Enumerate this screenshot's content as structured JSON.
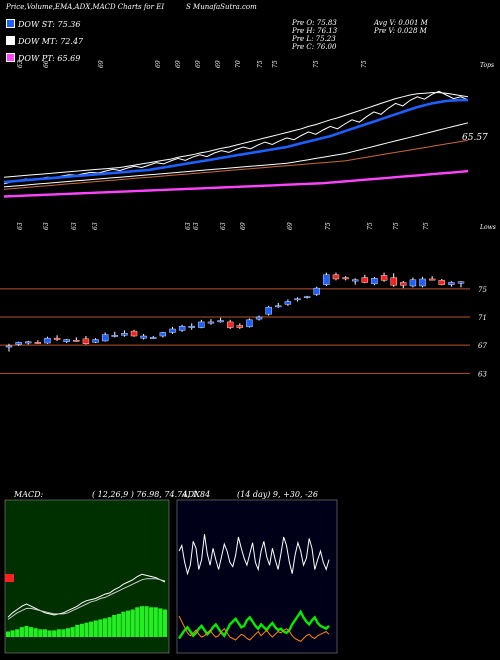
{
  "header": {
    "title": "Price,Volume,EMA,ADX,MACD Charts for EI",
    "site": "S MunafaSutra.com"
  },
  "legend": [
    {
      "label": "DOW ST: 75.36",
      "color": "#1e5fff"
    },
    {
      "label": "DOW MT: 72.47",
      "color": "#ffffff"
    },
    {
      "label": "DOW PT: 65.69",
      "color": "#ff44ff"
    }
  ],
  "ohlc": {
    "open": "Pre  O: 75.83",
    "high": "Pre  H: 76.13",
    "low": "Pre  L: 75.23",
    "close": "Pre  C: 76.00",
    "avg_volume": "Avg V: 0.001 M",
    "volume": "Pre  V: 0.028 M"
  },
  "colors": {
    "bull": "#1e5fff",
    "bear": "#ff2020",
    "macd_hist": "#22ee22",
    "adx_green": "#00ee00",
    "adx_orange": "#ff8800"
  },
  "chart_data": [
    {
      "type": "line",
      "panel": "ema",
      "top_labels": [
        "63",
        "66",
        "69",
        "69",
        "69",
        "69",
        "69",
        "70",
        "75",
        "75",
        "75",
        "75"
      ],
      "right_labels": [
        "Tops",
        "65.57"
      ],
      "series": [
        {
          "name": "",
          "color": "#ffffff",
          "values": [
            61.5,
            61.8,
            62.0,
            62.3,
            62.1,
            62.4,
            62.6,
            62.5,
            62.8,
            63.0,
            62.9,
            63.2,
            63.4,
            63.3,
            63.6,
            63.9,
            63.7,
            64.1,
            64.4,
            64.2,
            64.6,
            65.0,
            64.8,
            65.3,
            65.7,
            65.4,
            65.9,
            66.3,
            66.0,
            66.6,
            67.0,
            66.7,
            67.2,
            67.6,
            67.3,
            67.9,
            68.4,
            68.0,
            68.6,
            69.1,
            68.8,
            69.5,
            70.1,
            69.7,
            70.4,
            71.0,
            70.6,
            71.4,
            72.1,
            71.7,
            72.6,
            73.4,
            73.0,
            74.0,
            74.8,
            74.4,
            75.3,
            75.9,
            75.5,
            76.3,
            76.8,
            76.2,
            75.6,
            75.9,
            75.4
          ]
        },
        {
          "name": "",
          "color": "#ffffff",
          "values": [
            62.6,
            62.7,
            62.8,
            62.9,
            63.0,
            63.1,
            63.2,
            63.3,
            63.4,
            63.5,
            63.6,
            63.7,
            63.8,
            63.9,
            64.0,
            64.1,
            64.2,
            64.4,
            64.6,
            64.8,
            65.0,
            65.2,
            65.4,
            65.6,
            65.9,
            66.1,
            66.3,
            66.6,
            66.8,
            67.1,
            67.4,
            67.6,
            67.9,
            68.2,
            68.5,
            68.8,
            69.1,
            69.4,
            69.7,
            70.0,
            70.3,
            70.6,
            71.0,
            71.3,
            71.7,
            72.1,
            72.4,
            72.8,
            73.2,
            73.6,
            74.0,
            74.4,
            74.8,
            75.2,
            75.6,
            75.9,
            76.2,
            76.4,
            76.5,
            76.6,
            76.6,
            76.5,
            76.3,
            76.1,
            75.9
          ]
        },
        {
          "name": "",
          "color": "#1e5fff",
          "values": [
            61.8,
            61.9,
            62.0,
            62.1,
            62.2,
            62.3,
            62.4,
            62.5,
            62.6,
            62.7,
            62.8,
            62.9,
            63.0,
            63.1,
            63.2,
            63.3,
            63.4,
            63.5,
            63.6,
            63.7,
            63.8,
            64.0,
            64.2,
            64.4,
            64.6,
            64.8,
            65.0,
            65.2,
            65.4,
            65.6,
            65.8,
            66.0,
            66.2,
            66.4,
            66.6,
            66.8,
            67.0,
            67.2,
            67.4,
            67.6,
            67.9,
            68.2,
            68.5,
            68.8,
            69.1,
            69.4,
            69.8,
            70.2,
            70.6,
            71.0,
            71.4,
            71.8,
            72.2,
            72.6,
            73.0,
            73.4,
            73.8,
            74.2,
            74.5,
            74.8,
            75.0,
            75.2,
            75.3,
            75.35,
            75.36
          ]
        },
        {
          "name": "",
          "color": "#ffffff",
          "values": [
            61.0,
            61.1,
            61.2,
            61.3,
            61.4,
            61.5,
            61.6,
            61.7,
            61.8,
            61.9,
            62.0,
            62.1,
            62.2,
            62.3,
            62.4,
            62.5,
            62.6,
            62.7,
            62.8,
            62.9,
            63.0,
            63.1,
            63.2,
            63.3,
            63.4,
            63.5,
            63.6,
            63.7,
            63.8,
            63.9,
            64.0,
            64.1,
            64.2,
            64.3,
            64.4,
            64.5,
            64.6,
            64.7,
            64.8,
            64.9,
            65.1,
            65.3,
            65.5,
            65.7,
            65.9,
            66.1,
            66.3,
            66.5,
            66.8,
            67.1,
            67.4,
            67.7,
            68.0,
            68.3,
            68.6,
            68.9,
            69.2,
            69.5,
            69.8,
            70.1,
            70.4,
            70.7,
            71.0,
            71.3,
            71.6
          ]
        },
        {
          "name": "",
          "color": "#c86a3a",
          "values": [
            60.6,
            60.7,
            60.8,
            60.9,
            61.0,
            61.1,
            61.2,
            61.3,
            61.4,
            61.5,
            61.6,
            61.7,
            61.8,
            61.9,
            62.0,
            62.1,
            62.2,
            62.3,
            62.4,
            62.5,
            62.6,
            62.7,
            62.8,
            62.9,
            63.0,
            63.1,
            63.2,
            63.3,
            63.4,
            63.5,
            63.6,
            63.7,
            63.8,
            63.9,
            64.0,
            64.1,
            64.2,
            64.3,
            64.4,
            64.5,
            64.6,
            64.7,
            64.8,
            64.9,
            65.0,
            65.1,
            65.2,
            65.3,
            65.5,
            65.7,
            65.9,
            66.1,
            66.3,
            66.5,
            66.7,
            66.9,
            67.1,
            67.3,
            67.5,
            67.7,
            67.9,
            68.1,
            68.3,
            68.5,
            68.7
          ]
        },
        {
          "name": "",
          "color": "#ff44ff",
          "values": [
            59.4,
            59.45,
            59.5,
            59.55,
            59.6,
            59.65,
            59.7,
            59.75,
            59.8,
            59.85,
            59.9,
            59.95,
            60.0,
            60.05,
            60.1,
            60.15,
            60.2,
            60.25,
            60.3,
            60.35,
            60.4,
            60.45,
            60.5,
            60.55,
            60.6,
            60.65,
            60.7,
            60.75,
            60.8,
            60.85,
            60.9,
            60.95,
            61.0,
            61.05,
            61.1,
            61.15,
            61.2,
            61.25,
            61.3,
            61.35,
            61.4,
            61.45,
            61.5,
            61.55,
            61.6,
            61.7,
            61.8,
            61.9,
            62.0,
            62.1,
            62.2,
            62.3,
            62.4,
            62.5,
            62.6,
            62.7,
            62.8,
            62.9,
            63.0,
            63.1,
            63.2,
            63.3,
            63.4,
            63.5,
            63.6
          ]
        }
      ],
      "ylim": [
        58.0,
        80.0
      ]
    },
    {
      "type": "candlestick",
      "panel": "price",
      "top_labels": [
        "63",
        "63",
        "63",
        "63",
        "63",
        "63",
        "63",
        "69",
        "69",
        "75",
        "75",
        "75",
        "75"
      ],
      "right_labels": [
        "Lows",
        "75",
        "71",
        "67",
        "63"
      ],
      "gridlines": [
        75,
        71,
        67,
        63
      ],
      "ylim": [
        59.5,
        82.5
      ],
      "candles": [
        {
          "o": 66.8,
          "h": 67.2,
          "l": 66.1,
          "c": 66.9
        },
        {
          "o": 67.1,
          "h": 67.5,
          "l": 66.9,
          "c": 67.4
        },
        {
          "o": 67.3,
          "h": 67.6,
          "l": 67.1,
          "c": 67.5
        },
        {
          "o": 67.4,
          "h": 67.7,
          "l": 67.2,
          "c": 67.3
        },
        {
          "o": 67.3,
          "h": 68.2,
          "l": 67.2,
          "c": 68.0
        },
        {
          "o": 68.0,
          "h": 68.4,
          "l": 67.6,
          "c": 67.8
        },
        {
          "o": 67.5,
          "h": 67.9,
          "l": 67.3,
          "c": 67.8
        },
        {
          "o": 67.7,
          "h": 68.1,
          "l": 67.5,
          "c": 67.6
        },
        {
          "o": 67.9,
          "h": 68.3,
          "l": 67.1,
          "c": 67.2
        },
        {
          "o": 67.4,
          "h": 68.0,
          "l": 67.3,
          "c": 67.8
        },
        {
          "o": 67.6,
          "h": 68.8,
          "l": 67.5,
          "c": 68.5
        },
        {
          "o": 68.3,
          "h": 68.9,
          "l": 68.1,
          "c": 68.4
        },
        {
          "o": 68.4,
          "h": 69.1,
          "l": 68.2,
          "c": 68.7
        },
        {
          "o": 69.0,
          "h": 69.2,
          "l": 68.2,
          "c": 68.3
        },
        {
          "o": 68.0,
          "h": 68.6,
          "l": 67.8,
          "c": 68.3
        },
        {
          "o": 68.1,
          "h": 68.3,
          "l": 67.9,
          "c": 68.1
        },
        {
          "o": 68.3,
          "h": 68.9,
          "l": 68.1,
          "c": 68.8
        },
        {
          "o": 68.8,
          "h": 69.6,
          "l": 68.6,
          "c": 69.3
        },
        {
          "o": 69.1,
          "h": 69.9,
          "l": 68.9,
          "c": 69.7
        },
        {
          "o": 69.5,
          "h": 70.1,
          "l": 69.2,
          "c": 69.7
        },
        {
          "o": 69.5,
          "h": 70.6,
          "l": 69.4,
          "c": 70.3
        },
        {
          "o": 70.2,
          "h": 70.7,
          "l": 69.9,
          "c": 70.3
        },
        {
          "o": 70.3,
          "h": 70.9,
          "l": 70.2,
          "c": 70.5
        },
        {
          "o": 70.3,
          "h": 70.6,
          "l": 69.3,
          "c": 69.5
        },
        {
          "o": 69.8,
          "h": 70.1,
          "l": 69.3,
          "c": 69.5
        },
        {
          "o": 69.6,
          "h": 70.8,
          "l": 69.5,
          "c": 70.6
        },
        {
          "o": 70.7,
          "h": 71.2,
          "l": 70.5,
          "c": 71.0
        },
        {
          "o": 71.4,
          "h": 72.6,
          "l": 71.2,
          "c": 72.4
        },
        {
          "o": 72.5,
          "h": 73.0,
          "l": 72.3,
          "c": 72.6
        },
        {
          "o": 72.8,
          "h": 73.5,
          "l": 72.6,
          "c": 73.2
        },
        {
          "o": 73.5,
          "h": 73.8,
          "l": 73.2,
          "c": 73.6
        },
        {
          "o": 73.8,
          "h": 74.0,
          "l": 73.6,
          "c": 73.9
        },
        {
          "o": 74.2,
          "h": 75.3,
          "l": 74.0,
          "c": 75.1
        },
        {
          "o": 75.6,
          "h": 77.3,
          "l": 75.4,
          "c": 77.0
        },
        {
          "o": 77.0,
          "h": 77.3,
          "l": 76.2,
          "c": 76.4
        },
        {
          "o": 76.6,
          "h": 76.8,
          "l": 76.2,
          "c": 76.4
        },
        {
          "o": 76.1,
          "h": 76.5,
          "l": 75.6,
          "c": 76.3
        },
        {
          "o": 76.6,
          "h": 77.0,
          "l": 75.8,
          "c": 75.9
        },
        {
          "o": 75.7,
          "h": 76.7,
          "l": 75.5,
          "c": 76.5
        },
        {
          "o": 76.9,
          "h": 77.3,
          "l": 76.0,
          "c": 76.2
        },
        {
          "o": 76.6,
          "h": 77.2,
          "l": 75.3,
          "c": 75.5
        },
        {
          "o": 75.9,
          "h": 76.1,
          "l": 75.1,
          "c": 75.5
        },
        {
          "o": 75.4,
          "h": 76.6,
          "l": 75.2,
          "c": 76.3
        },
        {
          "o": 75.4,
          "h": 76.7,
          "l": 75.2,
          "c": 76.4
        },
        {
          "o": 76.4,
          "h": 76.8,
          "l": 76.2,
          "c": 76.3
        },
        {
          "o": 76.2,
          "h": 76.4,
          "l": 75.5,
          "c": 75.6
        },
        {
          "o": 75.6,
          "h": 76.1,
          "l": 75.3,
          "c": 75.9
        },
        {
          "o": 75.8,
          "h": 76.1,
          "l": 75.2,
          "c": 76.0
        }
      ]
    },
    {
      "type": "line",
      "panel": "macd",
      "title": "MACD:",
      "params": "( 12,26,9 ) 76.98, 74.74, 1.84",
      "ylim": [
        0,
        1
      ],
      "series": [
        {
          "name": "",
          "color": "#ffffff",
          "values": [
            0.18,
            0.22,
            0.25,
            0.28,
            0.3,
            0.28,
            0.26,
            0.24,
            0.22,
            0.21,
            0.2,
            0.21,
            0.22,
            0.24,
            0.26,
            0.28,
            0.31,
            0.33,
            0.34,
            0.35,
            0.37,
            0.39,
            0.4,
            0.43,
            0.45,
            0.48,
            0.5,
            0.52,
            0.55,
            0.57,
            0.56,
            0.55,
            0.54,
            0.52,
            0.5
          ]
        },
        {
          "name": "",
          "color": "#cccccc",
          "values": [
            0.16,
            0.19,
            0.22,
            0.24,
            0.26,
            0.26,
            0.25,
            0.24,
            0.23,
            0.22,
            0.21,
            0.21,
            0.21,
            0.22,
            0.24,
            0.26,
            0.28,
            0.3,
            0.32,
            0.33,
            0.35,
            0.36,
            0.38,
            0.4,
            0.42,
            0.44,
            0.46,
            0.48,
            0.5,
            0.52,
            0.53,
            0.53,
            0.53,
            0.52,
            0.51
          ]
        },
        {
          "name": "",
          "color": "#22ee22",
          "values": [
            0.05,
            0.06,
            0.07,
            0.09,
            0.1,
            0.09,
            0.08,
            0.07,
            0.07,
            0.06,
            0.06,
            0.07,
            0.07,
            0.08,
            0.09,
            0.11,
            0.12,
            0.13,
            0.14,
            0.15,
            0.16,
            0.17,
            0.18,
            0.2,
            0.21,
            0.23,
            0.24,
            0.25,
            0.27,
            0.28,
            0.28,
            0.27,
            0.27,
            0.26,
            0.25
          ]
        }
      ]
    },
    {
      "type": "line",
      "panel": "adx",
      "title": "ADX",
      "params": "(14 day) 9, +30, -26",
      "ylim": [
        0,
        100
      ],
      "series": [
        {
          "name": "",
          "color": "#ffffff",
          "values": [
            68,
            72,
            60,
            52,
            58,
            75,
            70,
            55,
            62,
            80,
            66,
            58,
            70,
            62,
            55,
            64,
            73,
            68,
            60,
            57,
            65,
            78,
            70,
            63,
            58,
            66,
            74,
            60,
            55,
            68,
            75,
            64,
            58,
            70,
            62,
            55,
            66,
            78,
            72,
            60,
            52,
            65,
            74,
            68,
            58,
            63,
            77,
            70,
            55,
            62,
            68,
            60,
            55,
            62
          ]
        },
        {
          "name": "",
          "color": "#00ee00",
          "values": [
            6,
            9,
            12,
            14,
            11,
            8,
            10,
            13,
            15,
            12,
            9,
            11,
            14,
            16,
            13,
            10,
            8,
            12,
            16,
            18,
            20,
            17,
            14,
            15,
            19,
            21,
            18,
            15,
            13,
            16,
            14,
            12,
            15,
            17,
            14,
            12,
            13,
            11,
            10,
            12,
            16,
            19,
            22,
            25,
            21,
            18,
            16,
            19,
            21,
            17,
            15,
            14,
            13,
            15
          ]
        },
        {
          "name": "",
          "color": "#ff8800",
          "values": [
            22,
            18,
            14,
            10,
            8,
            10,
            12,
            9,
            7,
            8,
            10,
            12,
            9,
            7,
            8,
            11,
            13,
            10,
            7,
            6,
            5,
            7,
            9,
            8,
            6,
            5,
            7,
            9,
            11,
            8,
            10,
            12,
            9,
            7,
            9,
            11,
            10,
            12,
            13,
            11,
            8,
            6,
            5,
            4,
            6,
            8,
            9,
            7,
            6,
            8,
            9,
            10,
            11,
            9
          ]
        }
      ]
    }
  ]
}
